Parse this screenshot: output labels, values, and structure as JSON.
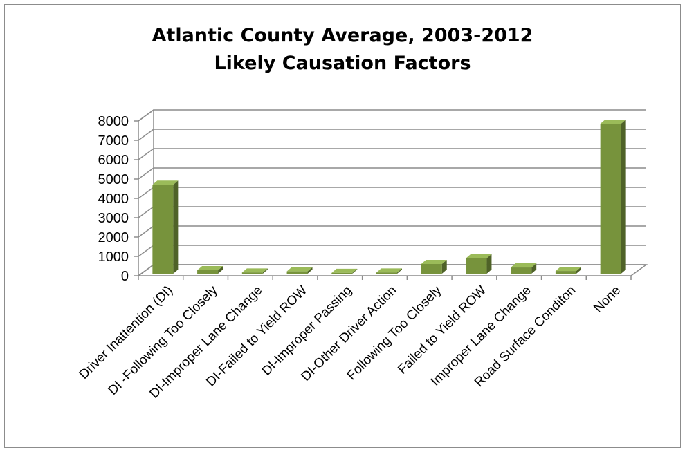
{
  "chart_data": {
    "type": "bar",
    "title": "Atlantic County Average, 2003-2012",
    "subtitle": "Likely Causation Factors",
    "xlabel": "",
    "ylabel": "",
    "ylim": [
      0,
      8000
    ],
    "yticks": [
      0,
      1000,
      2000,
      3000,
      4000,
      5000,
      6000,
      7000,
      8000
    ],
    "categories": [
      "Driver Inattention (DI)",
      "DI -Following Too Closely",
      "DI-Improper Lane Change",
      "DI-Failed to Yield ROW",
      "DI-Improper Passing",
      "DI-Other Driver Action",
      "Following Too Closely",
      "Failed to Yield ROW",
      "Improper Lane Change",
      "Road Surface Conditon",
      "None"
    ],
    "values": [
      4600,
      180,
      60,
      120,
      40,
      60,
      500,
      800,
      320,
      140,
      7750
    ],
    "grid": true,
    "legend": "none",
    "colors": {
      "bar_front": "#77933c",
      "bar_side": "#4f6228",
      "bar_top": "#9bbb59"
    }
  }
}
